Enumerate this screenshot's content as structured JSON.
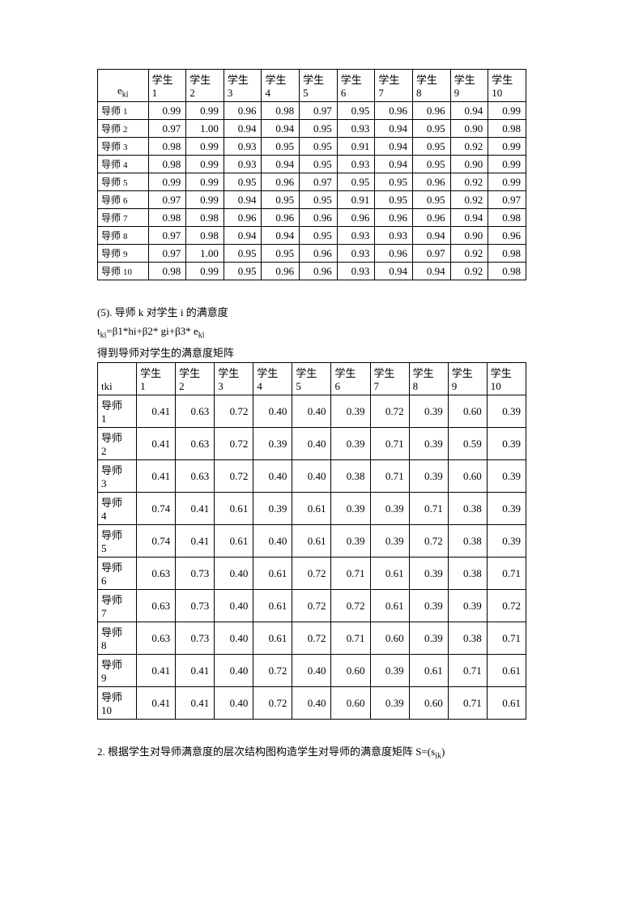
{
  "table1": {
    "corner_label": "e",
    "corner_sub": "ki",
    "col_prefix": "学生",
    "col_nums": [
      "1",
      "2",
      "3",
      "4",
      "5",
      "6",
      "7",
      "8",
      "9",
      "10"
    ],
    "row_prefix": "导师",
    "row_nums_small": true,
    "rows": [
      {
        "n": "1",
        "v": [
          "0.99",
          "0.99",
          "0.96",
          "0.98",
          "0.97",
          "0.95",
          "0.96",
          "0.96",
          "0.94",
          "0.99"
        ]
      },
      {
        "n": "2",
        "v": [
          "0.97",
          "1.00",
          "0.94",
          "0.94",
          "0.95",
          "0.93",
          "0.94",
          "0.95",
          "0.90",
          "0.98"
        ]
      },
      {
        "n": "3",
        "v": [
          "0.98",
          "0.99",
          "0.93",
          "0.95",
          "0.95",
          "0.91",
          "0.94",
          "0.95",
          "0.92",
          "0.99"
        ]
      },
      {
        "n": "4",
        "v": [
          "0.98",
          "0.99",
          "0.93",
          "0.94",
          "0.95",
          "0.93",
          "0.94",
          "0.95",
          "0.90",
          "0.99"
        ]
      },
      {
        "n": "5",
        "v": [
          "0.99",
          "0.99",
          "0.95",
          "0.96",
          "0.97",
          "0.95",
          "0.95",
          "0.96",
          "0.92",
          "0.99"
        ]
      },
      {
        "n": "6",
        "v": [
          "0.97",
          "0.99",
          "0.94",
          "0.95",
          "0.95",
          "0.91",
          "0.95",
          "0.95",
          "0.92",
          "0.97"
        ]
      },
      {
        "n": "7",
        "v": [
          "0.98",
          "0.98",
          "0.96",
          "0.96",
          "0.96",
          "0.96",
          "0.96",
          "0.96",
          "0.94",
          "0.98"
        ]
      },
      {
        "n": "8",
        "v": [
          "0.97",
          "0.98",
          "0.94",
          "0.94",
          "0.95",
          "0.93",
          "0.93",
          "0.94",
          "0.90",
          "0.96"
        ]
      },
      {
        "n": "9",
        "v": [
          "0.97",
          "1.00",
          "0.95",
          "0.95",
          "0.96",
          "0.93",
          "0.96",
          "0.97",
          "0.92",
          "0.98"
        ]
      },
      {
        "n": "10",
        "v": [
          "0.98",
          "0.99",
          "0.95",
          "0.96",
          "0.96",
          "0.93",
          "0.94",
          "0.94",
          "0.92",
          "0.98"
        ]
      }
    ]
  },
  "mid": {
    "line1": "(5). 导师 k 对学生 i 的满意度",
    "formula_prefix": "t",
    "formula_sub": "ki",
    "formula_rest": "=β1*hi+β2* gi+β3* e",
    "formula_sub2": "ki",
    "line3": "得到导师对学生的满意度矩阵"
  },
  "table2": {
    "corner_label": "tki",
    "col_prefix": "学生",
    "col_nums": [
      "1",
      "2",
      "3",
      "4",
      "5",
      "6",
      "7",
      "8",
      "9",
      "10"
    ],
    "row_prefix": "导师",
    "rows": [
      {
        "n": "1",
        "v": [
          "0.41",
          "0.63",
          "0.72",
          "0.40",
          "0.40",
          "0.39",
          "0.72",
          "0.39",
          "0.60",
          "0.39"
        ]
      },
      {
        "n": "2",
        "v": [
          "0.41",
          "0.63",
          "0.72",
          "0.39",
          "0.40",
          "0.39",
          "0.71",
          "0.39",
          "0.59",
          "0.39"
        ]
      },
      {
        "n": "3",
        "v": [
          "0.41",
          "0.63",
          "0.72",
          "0.40",
          "0.40",
          "0.38",
          "0.71",
          "0.39",
          "0.60",
          "0.39"
        ]
      },
      {
        "n": "4",
        "v": [
          "0.74",
          "0.41",
          "0.61",
          "0.39",
          "0.61",
          "0.39",
          "0.39",
          "0.71",
          "0.38",
          "0.39"
        ]
      },
      {
        "n": "5",
        "v": [
          "0.74",
          "0.41",
          "0.61",
          "0.40",
          "0.61",
          "0.39",
          "0.39",
          "0.72",
          "0.38",
          "0.39"
        ]
      },
      {
        "n": "6",
        "v": [
          "0.63",
          "0.73",
          "0.40",
          "0.61",
          "0.72",
          "0.71",
          "0.61",
          "0.39",
          "0.38",
          "0.71"
        ]
      },
      {
        "n": "7",
        "v": [
          "0.63",
          "0.73",
          "0.40",
          "0.61",
          "0.72",
          "0.72",
          "0.61",
          "0.39",
          "0.39",
          "0.72"
        ]
      },
      {
        "n": "8",
        "v": [
          "0.63",
          "0.73",
          "0.40",
          "0.61",
          "0.72",
          "0.71",
          "0.60",
          "0.39",
          "0.38",
          "0.71"
        ]
      },
      {
        "n": "9",
        "v": [
          "0.41",
          "0.41",
          "0.40",
          "0.72",
          "0.40",
          "0.60",
          "0.39",
          "0.61",
          "0.71",
          "0.61"
        ]
      },
      {
        "n": "10",
        "v": [
          "0.41",
          "0.41",
          "0.40",
          "0.72",
          "0.40",
          "0.60",
          "0.39",
          "0.60",
          "0.71",
          "0.61"
        ]
      }
    ]
  },
  "footer": {
    "text_a": "2. 根据学生对导师满意度的层次结构图构造学生对导师的满意度矩阵 S=(s",
    "sub": "ik",
    "text_b": ")"
  }
}
